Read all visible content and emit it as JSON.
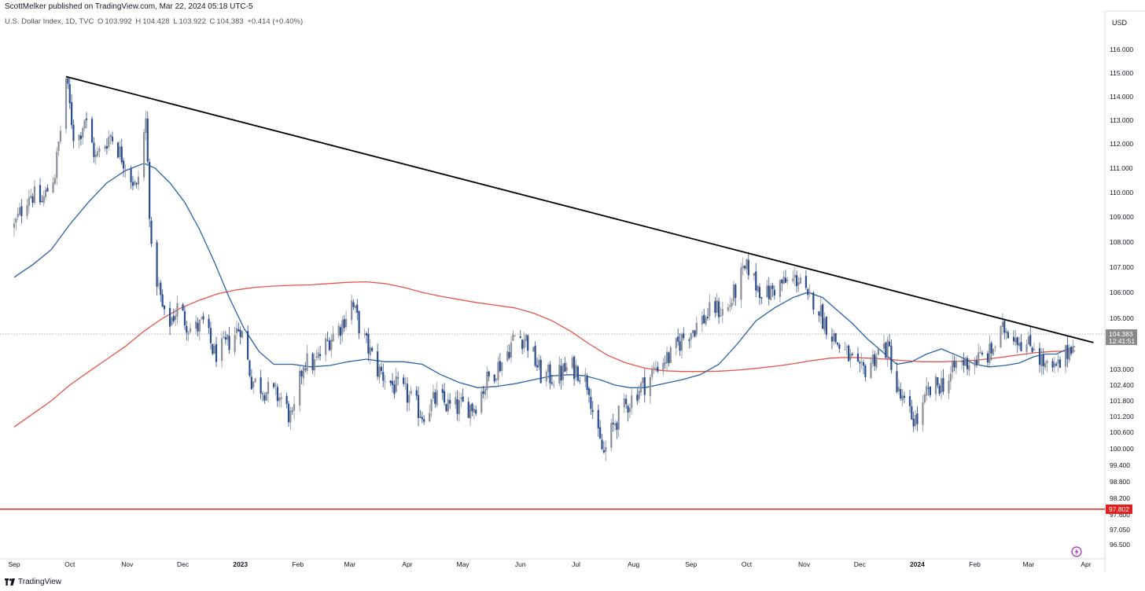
{
  "header": {
    "publisher": "ScottMelker published on TradingView.com, Mar 22, 2024 05:18 UTC-5",
    "symbol": "U.S. Dollar Index, 1D, TVC",
    "ohlc": {
      "o_label": "O",
      "o": "103.992",
      "h_label": "H",
      "h": "104.428",
      "l_label": "L",
      "l": "103.922",
      "c_label": "C",
      "c": "104.383",
      "change": "+0.414 (+0.40%)"
    },
    "currency": "USD"
  },
  "footer": {
    "brand": "TradingView"
  },
  "colors": {
    "candle": "#8a8f99",
    "candle_down": "#2a4d8f",
    "ma_fast": "#2962a8",
    "ma_slow": "#e5544b",
    "trendline": "#000000",
    "support": "#e02020",
    "price_badge": "#8a8a8a",
    "support_badge": "#e02020"
  },
  "chart_data": {
    "type": "candlestick",
    "title": "U.S. Dollar Index, 1D, TVC",
    "y_axis": {
      "position": "right",
      "ticks": [
        {
          "label": "116.000",
          "v": 116.0
        },
        {
          "label": "115.000",
          "v": 115.0
        },
        {
          "label": "114.000",
          "v": 114.0
        },
        {
          "label": "113.000",
          "v": 113.0
        },
        {
          "label": "112.000",
          "v": 112.0
        },
        {
          "label": "111.000",
          "v": 111.0
        },
        {
          "label": "110.000",
          "v": 110.0
        },
        {
          "label": "109.000",
          "v": 109.0
        },
        {
          "label": "108.000",
          "v": 108.0
        },
        {
          "label": "107.000",
          "v": 107.0
        },
        {
          "label": "106.000",
          "v": 106.0
        },
        {
          "label": "105.000",
          "v": 105.0
        },
        {
          "label": "103.000",
          "v": 103.0
        },
        {
          "label": "102.400",
          "v": 102.4
        },
        {
          "label": "101.800",
          "v": 101.8
        },
        {
          "label": "101.200",
          "v": 101.2
        },
        {
          "label": "100.600",
          "v": 100.6
        },
        {
          "label": "100.000",
          "v": 100.0
        },
        {
          "label": "99.400",
          "v": 99.4
        },
        {
          "label": "98.800",
          "v": 98.8
        },
        {
          "label": "98.200",
          "v": 98.2
        },
        {
          "label": "97.600",
          "v": 97.6
        },
        {
          "label": "97.050",
          "v": 97.05
        },
        {
          "label": "96.500",
          "v": 96.5
        }
      ]
    },
    "x_axis": {
      "ticks": [
        {
          "label": "Sep",
          "t": 0
        },
        {
          "label": "Oct",
          "t": 30
        },
        {
          "label": "Nov",
          "t": 61
        },
        {
          "label": "Dec",
          "t": 91
        },
        {
          "label": "2023",
          "t": 122,
          "bold": true
        },
        {
          "label": "Feb",
          "t": 153
        },
        {
          "label": "Mar",
          "t": 181
        },
        {
          "label": "Apr",
          "t": 212
        },
        {
          "label": "May",
          "t": 242
        },
        {
          "label": "Jun",
          "t": 273
        },
        {
          "label": "Jul",
          "t": 303
        },
        {
          "label": "Aug",
          "t": 334
        },
        {
          "label": "Sep",
          "t": 365
        },
        {
          "label": "Oct",
          "t": 395
        },
        {
          "label": "Nov",
          "t": 426
        },
        {
          "label": "Dec",
          "t": 456
        },
        {
          "label": "2024",
          "t": 487,
          "bold": true
        },
        {
          "label": "Feb",
          "t": 518
        },
        {
          "label": "Mar",
          "t": 547
        },
        {
          "label": "Apr",
          "t": 578
        }
      ]
    },
    "anchors": [
      [
        0,
        108.6
      ],
      [
        8,
        110.0
      ],
      [
        15,
        109.6
      ],
      [
        22,
        110.8
      ],
      [
        26,
        113.2
      ],
      [
        28,
        114.78
      ],
      [
        33,
        111.8
      ],
      [
        38,
        113.1
      ],
      [
        44,
        111.4
      ],
      [
        52,
        112.4
      ],
      [
        60,
        111.2
      ],
      [
        66,
        110.1
      ],
      [
        71,
        113.0
      ],
      [
        74,
        107.5
      ],
      [
        76,
        106.9
      ],
      [
        82,
        104.6
      ],
      [
        88,
        105.4
      ],
      [
        96,
        104.5
      ],
      [
        102,
        104.8
      ],
      [
        108,
        103.6
      ],
      [
        114,
        103.9
      ],
      [
        122,
        104.7
      ],
      [
        128,
        102.6
      ],
      [
        136,
        102.2
      ],
      [
        144,
        101.9
      ],
      [
        150,
        101.0
      ],
      [
        156,
        103.3
      ],
      [
        162,
        103.2
      ],
      [
        170,
        104.2
      ],
      [
        176,
        104.7
      ],
      [
        182,
        105.6
      ],
      [
        188,
        104.3
      ],
      [
        196,
        103.0
      ],
      [
        204,
        102.4
      ],
      [
        212,
        102.0
      ],
      [
        220,
        101.3
      ],
      [
        228,
        101.9
      ],
      [
        236,
        101.5
      ],
      [
        242,
        101.6
      ],
      [
        248,
        101.6
      ],
      [
        256,
        102.7
      ],
      [
        264,
        103.4
      ],
      [
        270,
        104.3
      ],
      [
        276,
        104.2
      ],
      [
        284,
        102.8
      ],
      [
        292,
        102.7
      ],
      [
        300,
        103.1
      ],
      [
        304,
        103.0
      ],
      [
        310,
        102.4
      ],
      [
        314,
        100.5
      ],
      [
        318,
        99.8
      ],
      [
        324,
        101.0
      ],
      [
        330,
        101.6
      ],
      [
        336,
        102.2
      ],
      [
        342,
        102.6
      ],
      [
        348,
        103.3
      ],
      [
        354,
        103.5
      ],
      [
        360,
        104.2
      ],
      [
        366,
        104.6
      ],
      [
        372,
        105.0
      ],
      [
        378,
        105.4
      ],
      [
        384,
        105.2
      ],
      [
        388,
        105.9
      ],
      [
        392,
        106.6
      ],
      [
        396,
        107.0
      ],
      [
        400,
        106.3
      ],
      [
        406,
        105.9
      ],
      [
        412,
        106.3
      ],
      [
        418,
        106.4
      ],
      [
        424,
        106.6
      ],
      [
        428,
        105.6
      ],
      [
        432,
        105.8
      ],
      [
        436,
        105.0
      ],
      [
        440,
        104.5
      ],
      [
        444,
        104.0
      ],
      [
        450,
        103.5
      ],
      [
        456,
        102.8
      ],
      [
        462,
        103.3
      ],
      [
        468,
        103.9
      ],
      [
        472,
        103.7
      ],
      [
        476,
        102.2
      ],
      [
        480,
        101.6
      ],
      [
        484,
        101.2
      ],
      [
        488,
        101.0
      ],
      [
        492,
        102.0
      ],
      [
        498,
        102.4
      ],
      [
        504,
        102.6
      ],
      [
        508,
        103.2
      ],
      [
        514,
        103.3
      ],
      [
        520,
        103.4
      ],
      [
        526,
        103.6
      ],
      [
        530,
        104.1
      ],
      [
        534,
        104.6
      ],
      [
        538,
        104.5
      ],
      [
        542,
        104.2
      ],
      [
        546,
        103.9
      ],
      [
        550,
        104.0
      ],
      [
        554,
        103.3
      ],
      [
        558,
        102.9
      ],
      [
        562,
        103.0
      ],
      [
        566,
        103.4
      ],
      [
        570,
        104.0
      ],
      [
        572,
        104.383
      ]
    ],
    "series": [
      {
        "name": "",
        "kind": "line",
        "color": "#2962a8",
        "points": [
          [
            0,
            106.6
          ],
          [
            10,
            107.1
          ],
          [
            20,
            107.7
          ],
          [
            30,
            108.7
          ],
          [
            40,
            109.6
          ],
          [
            50,
            110.4
          ],
          [
            60,
            110.9
          ],
          [
            70,
            111.2
          ],
          [
            76,
            111.0
          ],
          [
            84,
            110.4
          ],
          [
            92,
            109.6
          ],
          [
            100,
            108.5
          ],
          [
            108,
            107.2
          ],
          [
            116,
            105.8
          ],
          [
            124,
            104.6
          ],
          [
            132,
            103.7
          ],
          [
            140,
            103.2
          ],
          [
            150,
            103.2
          ],
          [
            160,
            103.1
          ],
          [
            170,
            103.15
          ],
          [
            180,
            103.3
          ],
          [
            190,
            103.4
          ],
          [
            200,
            103.3
          ],
          [
            210,
            103.3
          ],
          [
            220,
            103.2
          ],
          [
            230,
            102.8
          ],
          [
            240,
            102.5
          ],
          [
            250,
            102.3
          ],
          [
            260,
            102.35
          ],
          [
            270,
            102.45
          ],
          [
            280,
            102.6
          ],
          [
            290,
            102.75
          ],
          [
            300,
            102.8
          ],
          [
            308,
            102.75
          ],
          [
            316,
            102.6
          ],
          [
            324,
            102.4
          ],
          [
            332,
            102.3
          ],
          [
            340,
            102.3
          ],
          [
            350,
            102.45
          ],
          [
            360,
            102.6
          ],
          [
            370,
            102.8
          ],
          [
            380,
            103.2
          ],
          [
            390,
            104.0
          ],
          [
            400,
            104.9
          ],
          [
            410,
            105.4
          ],
          [
            420,
            105.8
          ],
          [
            428,
            106.0
          ],
          [
            436,
            105.8
          ],
          [
            444,
            105.3
          ],
          [
            452,
            104.8
          ],
          [
            460,
            104.2
          ],
          [
            468,
            103.7
          ],
          [
            476,
            103.2
          ],
          [
            484,
            103.3
          ],
          [
            492,
            103.6
          ],
          [
            500,
            103.8
          ],
          [
            510,
            103.5
          ],
          [
            518,
            103.2
          ],
          [
            526,
            103.1
          ],
          [
            534,
            103.15
          ],
          [
            542,
            103.25
          ],
          [
            550,
            103.5
          ],
          [
            556,
            103.6
          ],
          [
            562,
            103.6
          ],
          [
            568,
            103.8
          ],
          [
            572,
            103.9
          ]
        ]
      },
      {
        "name": "",
        "kind": "line",
        "color": "#e5544b",
        "points": [
          [
            0,
            100.8
          ],
          [
            10,
            101.3
          ],
          [
            20,
            101.8
          ],
          [
            30,
            102.4
          ],
          [
            40,
            102.9
          ],
          [
            50,
            103.4
          ],
          [
            60,
            103.9
          ],
          [
            70,
            104.5
          ],
          [
            80,
            105.0
          ],
          [
            90,
            105.4
          ],
          [
            100,
            105.7
          ],
          [
            110,
            105.95
          ],
          [
            120,
            106.1
          ],
          [
            130,
            106.2
          ],
          [
            140,
            106.25
          ],
          [
            150,
            106.28
          ],
          [
            160,
            106.3
          ],
          [
            170,
            106.35
          ],
          [
            180,
            106.4
          ],
          [
            190,
            106.42
          ],
          [
            200,
            106.35
          ],
          [
            210,
            106.2
          ],
          [
            220,
            106.0
          ],
          [
            230,
            105.85
          ],
          [
            240,
            105.72
          ],
          [
            250,
            105.6
          ],
          [
            260,
            105.5
          ],
          [
            270,
            105.4
          ],
          [
            280,
            105.2
          ],
          [
            290,
            104.9
          ],
          [
            300,
            104.5
          ],
          [
            310,
            104.0
          ],
          [
            320,
            103.55
          ],
          [
            330,
            103.25
          ],
          [
            340,
            103.05
          ],
          [
            350,
            102.95
          ],
          [
            360,
            102.92
          ],
          [
            370,
            102.92
          ],
          [
            380,
            102.93
          ],
          [
            390,
            102.97
          ],
          [
            400,
            103.04
          ],
          [
            410,
            103.12
          ],
          [
            420,
            103.22
          ],
          [
            430,
            103.34
          ],
          [
            440,
            103.44
          ],
          [
            450,
            103.47
          ],
          [
            460,
            103.44
          ],
          [
            470,
            103.4
          ],
          [
            480,
            103.34
          ],
          [
            490,
            103.3
          ],
          [
            500,
            103.3
          ],
          [
            510,
            103.32
          ],
          [
            520,
            103.37
          ],
          [
            530,
            103.45
          ],
          [
            540,
            103.55
          ],
          [
            550,
            103.65
          ],
          [
            560,
            103.7
          ],
          [
            570,
            103.72
          ],
          [
            572,
            103.73
          ]
        ]
      }
    ],
    "trendline": {
      "from": [
        28,
        114.85
      ],
      "to": [
        582,
        104.05
      ],
      "color": "#000000"
    },
    "support_line": {
      "value": 97.802,
      "label": "97.802"
    },
    "last_price": {
      "value": 104.383,
      "label": "104.383",
      "countdown": "12:41:51"
    }
  }
}
